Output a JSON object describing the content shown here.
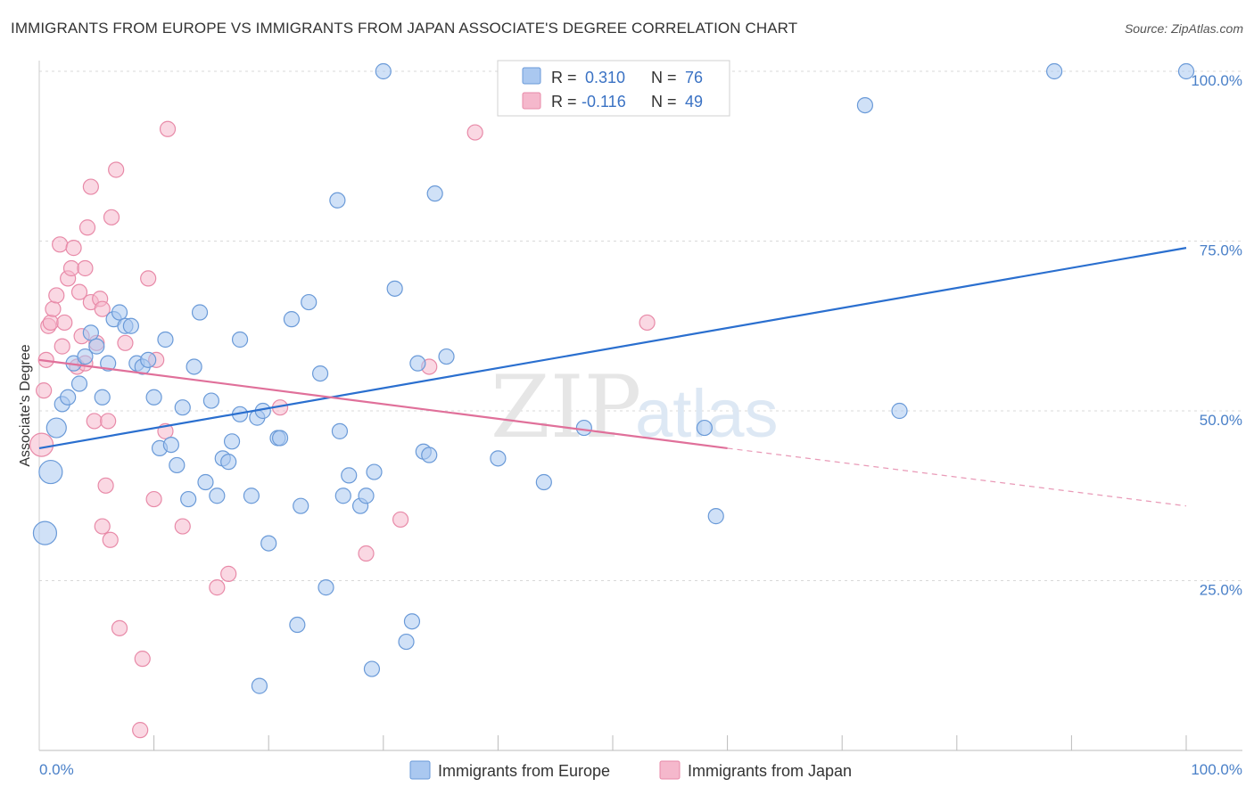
{
  "title": "IMMIGRANTS FROM EUROPE VS IMMIGRANTS FROM JAPAN ASSOCIATE'S DEGREE CORRELATION CHART",
  "source": "Source: ZipAtlas.com",
  "watermark": {
    "zip": "ZIP",
    "atlas": "atlas"
  },
  "colors": {
    "europe_fill": "#aac8f0",
    "europe_stroke": "#6a9ad8",
    "europe_line": "#2a6fcf",
    "japan_fill": "#f5b8cc",
    "japan_stroke": "#e88aa8",
    "japan_line": "#e0709a",
    "grid": "#d8d8d8",
    "tick_text": "#4a80c8"
  },
  "stats_legend": {
    "row1": {
      "r_label": "R = ",
      "r_value": "0.310",
      "n_label": "N = ",
      "n_value": "76"
    },
    "row2": {
      "r_label": "R = ",
      "r_value": "-0.116",
      "n_label": "N = ",
      "n_value": "49"
    }
  },
  "chart_data": {
    "type": "scatter",
    "title": "IMMIGRANTS FROM EUROPE VS IMMIGRANTS FROM JAPAN ASSOCIATE'S DEGREE CORRELATION CHART",
    "xlabel": "",
    "ylabel": "Associate's Degree",
    "xlim": [
      0,
      100
    ],
    "ylim": [
      0,
      100
    ],
    "x_tick_labels": [
      "0.0%",
      "100.0%"
    ],
    "y_tick_labels": [
      "25.0%",
      "50.0%",
      "75.0%",
      "100.0%"
    ],
    "y_ticks": [
      25,
      50,
      75,
      100
    ],
    "grid": true,
    "legend_position": "bottom",
    "series": [
      {
        "name": "Immigrants from Europe",
        "r": 0.31,
        "n": 76,
        "trend": {
          "x": [
            0,
            100
          ],
          "y": [
            44.5,
            74.0
          ]
        },
        "points": [
          {
            "x": 0.5,
            "y": 32,
            "s": 3
          },
          {
            "x": 1,
            "y": 41,
            "s": 3
          },
          {
            "x": 1.5,
            "y": 47.5,
            "s": 2
          },
          {
            "x": 2,
            "y": 51
          },
          {
            "x": 2.5,
            "y": 52
          },
          {
            "x": 3,
            "y": 57
          },
          {
            "x": 3.5,
            "y": 54
          },
          {
            "x": 4,
            "y": 58
          },
          {
            "x": 4.5,
            "y": 61.5
          },
          {
            "x": 5,
            "y": 59.5
          },
          {
            "x": 5.5,
            "y": 52
          },
          {
            "x": 6,
            "y": 57
          },
          {
            "x": 6.5,
            "y": 63.5
          },
          {
            "x": 7,
            "y": 64.5
          },
          {
            "x": 7.5,
            "y": 62.5
          },
          {
            "x": 8,
            "y": 62.5
          },
          {
            "x": 8.5,
            "y": 57
          },
          {
            "x": 9,
            "y": 56.5
          },
          {
            "x": 9.5,
            "y": 57.5
          },
          {
            "x": 10,
            "y": 52
          },
          {
            "x": 10.5,
            "y": 44.5
          },
          {
            "x": 11,
            "y": 60.5
          },
          {
            "x": 11.5,
            "y": 45
          },
          {
            "x": 12,
            "y": 42
          },
          {
            "x": 12.5,
            "y": 50.5
          },
          {
            "x": 13,
            "y": 37
          },
          {
            "x": 13.5,
            "y": 56.5
          },
          {
            "x": 14,
            "y": 64.5
          },
          {
            "x": 14.5,
            "y": 39.5
          },
          {
            "x": 15,
            "y": 51.5
          },
          {
            "x": 15.5,
            "y": 37.5
          },
          {
            "x": 16,
            "y": 43
          },
          {
            "x": 16.5,
            "y": 42.5
          },
          {
            "x": 16.8,
            "y": 45.5
          },
          {
            "x": 17.5,
            "y": 49.5
          },
          {
            "x": 17.5,
            "y": 60.5
          },
          {
            "x": 18.5,
            "y": 37.5
          },
          {
            "x": 19,
            "y": 49
          },
          {
            "x": 19.2,
            "y": 9.5
          },
          {
            "x": 19.5,
            "y": 50
          },
          {
            "x": 20,
            "y": 30.5
          },
          {
            "x": 20.8,
            "y": 46
          },
          {
            "x": 21,
            "y": 46
          },
          {
            "x": 22,
            "y": 63.5
          },
          {
            "x": 22.5,
            "y": 18.5
          },
          {
            "x": 22.8,
            "y": 36
          },
          {
            "x": 23.5,
            "y": 66
          },
          {
            "x": 24.5,
            "y": 55.5
          },
          {
            "x": 25,
            "y": 24
          },
          {
            "x": 26,
            "y": 81
          },
          {
            "x": 26.2,
            "y": 47
          },
          {
            "x": 26.5,
            "y": 37.5
          },
          {
            "x": 27,
            "y": 40.5
          },
          {
            "x": 28,
            "y": 36
          },
          {
            "x": 28.5,
            "y": 37.5
          },
          {
            "x": 29,
            "y": 12
          },
          {
            "x": 29.2,
            "y": 41
          },
          {
            "x": 30,
            "y": 100
          },
          {
            "x": 31,
            "y": 68
          },
          {
            "x": 32,
            "y": 16
          },
          {
            "x": 32.5,
            "y": 19
          },
          {
            "x": 33,
            "y": 57
          },
          {
            "x": 33.5,
            "y": 44
          },
          {
            "x": 34,
            "y": 43.5
          },
          {
            "x": 34.5,
            "y": 82
          },
          {
            "x": 35.5,
            "y": 58
          },
          {
            "x": 40,
            "y": 43
          },
          {
            "x": 44,
            "y": 39.5
          },
          {
            "x": 47.5,
            "y": 47.5
          },
          {
            "x": 58,
            "y": 47.5
          },
          {
            "x": 59,
            "y": 34.5
          },
          {
            "x": 72,
            "y": 95
          },
          {
            "x": 75,
            "y": 50
          },
          {
            "x": 88.5,
            "y": 100
          },
          {
            "x": 100,
            "y": 100
          },
          {
            "x": 50,
            "y": 100
          }
        ]
      },
      {
        "name": "Immigrants from Japan",
        "r": -0.116,
        "n": 49,
        "trend": {
          "x": [
            0,
            60
          ],
          "y": [
            57.5,
            44.5
          ]
        },
        "trend_dashed": {
          "x": [
            60,
            100
          ],
          "y": [
            44.5,
            36
          ]
        },
        "points": [
          {
            "x": 0.2,
            "y": 45,
            "s": 3
          },
          {
            "x": 0.4,
            "y": 53
          },
          {
            "x": 0.6,
            "y": 57.5
          },
          {
            "x": 0.8,
            "y": 62.5
          },
          {
            "x": 1,
            "y": 63
          },
          {
            "x": 1.2,
            "y": 65
          },
          {
            "x": 1.5,
            "y": 67
          },
          {
            "x": 1.8,
            "y": 74.5
          },
          {
            "x": 2,
            "y": 59.5
          },
          {
            "x": 2.2,
            "y": 63
          },
          {
            "x": 2.5,
            "y": 69.5
          },
          {
            "x": 2.8,
            "y": 71
          },
          {
            "x": 3,
            "y": 74
          },
          {
            "x": 3.3,
            "y": 56.5
          },
          {
            "x": 3.5,
            "y": 67.5
          },
          {
            "x": 3.7,
            "y": 61
          },
          {
            "x": 4,
            "y": 57
          },
          {
            "x": 4,
            "y": 71
          },
          {
            "x": 4.2,
            "y": 77
          },
          {
            "x": 4.5,
            "y": 66
          },
          {
            "x": 4.5,
            "y": 83
          },
          {
            "x": 4.8,
            "y": 48.5
          },
          {
            "x": 5,
            "y": 60
          },
          {
            "x": 5.3,
            "y": 66.5
          },
          {
            "x": 5.5,
            "y": 65
          },
          {
            "x": 5.8,
            "y": 39
          },
          {
            "x": 5.5,
            "y": 33
          },
          {
            "x": 6,
            "y": 48.5
          },
          {
            "x": 6.2,
            "y": 31
          },
          {
            "x": 6.3,
            "y": 78.5
          },
          {
            "x": 6.7,
            "y": 85.5
          },
          {
            "x": 7,
            "y": 18
          },
          {
            "x": 7.5,
            "y": 60
          },
          {
            "x": 9,
            "y": 13.5
          },
          {
            "x": 8.8,
            "y": 3
          },
          {
            "x": 9.5,
            "y": 69.5
          },
          {
            "x": 10,
            "y": 37
          },
          {
            "x": 10.2,
            "y": 57.5
          },
          {
            "x": 11,
            "y": 47
          },
          {
            "x": 11.2,
            "y": 91.5
          },
          {
            "x": 12.5,
            "y": 33
          },
          {
            "x": 15.5,
            "y": 24
          },
          {
            "x": 16.5,
            "y": 26
          },
          {
            "x": 21,
            "y": 50.5
          },
          {
            "x": 28.5,
            "y": 29
          },
          {
            "x": 31.5,
            "y": 34
          },
          {
            "x": 34,
            "y": 56.5
          },
          {
            "x": 38,
            "y": 91
          },
          {
            "x": 53,
            "y": 63
          }
        ]
      }
    ]
  },
  "bottom_legend": {
    "europe_label": "Immigrants from Europe",
    "japan_label": "Immigrants from Japan"
  }
}
